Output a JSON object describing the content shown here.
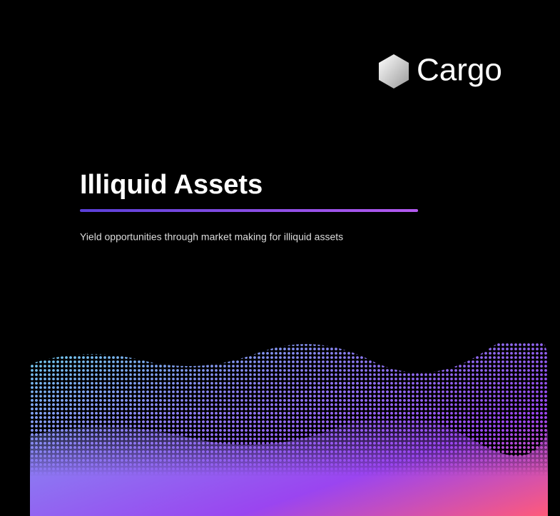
{
  "brand": "Cargo",
  "title": "Illiquid Assets",
  "subtitle": "Yield opportunities through market making for illiquid assets"
}
